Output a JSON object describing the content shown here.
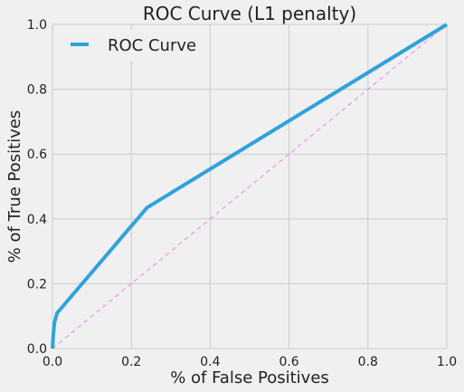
{
  "chart_data": {
    "type": "line",
    "title": "ROC Curve (L1 penalty)",
    "xlabel": "% of False Positives",
    "ylabel": "% of True Positives",
    "xlim": [
      0,
      1
    ],
    "ylim": [
      0,
      1
    ],
    "xticks": [
      "0.0",
      "0.2",
      "0.4",
      "0.6",
      "0.8",
      "1.0"
    ],
    "yticks": [
      "0.0",
      "0.2",
      "0.4",
      "0.6",
      "0.8",
      "1.0"
    ],
    "grid": true,
    "legend_position": "top-left",
    "series": [
      {
        "name": "ROC Curve",
        "color": "#30a2da",
        "x": [
          0.0,
          0.002,
          0.005,
          0.012,
          0.24,
          1.0
        ],
        "y": [
          0.0,
          0.04,
          0.08,
          0.11,
          0.435,
          1.0
        ]
      }
    ],
    "reference_line": {
      "color": "#ee82ee",
      "style": "dashed",
      "x": [
        0,
        1
      ],
      "y": [
        0,
        1
      ]
    }
  }
}
